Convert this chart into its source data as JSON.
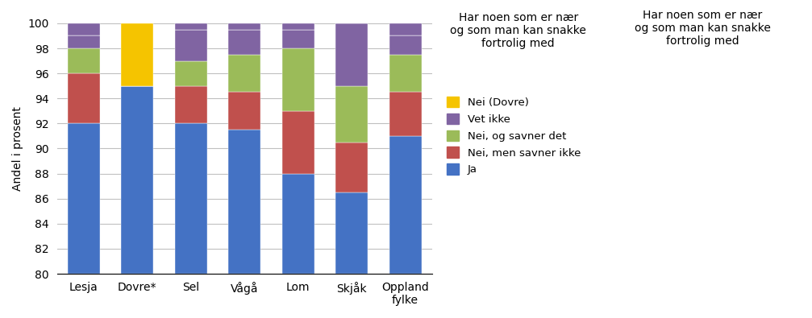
{
  "categories": [
    "Lesja",
    "Dovre*",
    "Sel",
    "Vågå",
    "Lom",
    "Skjåk",
    "Oppland\nfylke"
  ],
  "base": 80,
  "series": [
    {
      "label": "Ja",
      "color": "#4472C4",
      "tops": [
        92,
        95,
        92,
        91.5,
        88,
        86.5,
        91
      ]
    },
    {
      "label": "Nei, men savner ikke",
      "color": "#C0504D",
      "tops": [
        96,
        95,
        95,
        94.5,
        93,
        90.5,
        94.5
      ]
    },
    {
      "label": "Nei, og savner det",
      "color": "#9BBB59",
      "tops": [
        98,
        95,
        97,
        97.5,
        98,
        95,
        97.5
      ]
    },
    {
      "label": "Vet ikke",
      "color": "#8064A2",
      "tops": [
        99,
        95,
        99.5,
        99.5,
        99.5,
        100,
        99
      ]
    },
    {
      "label": "Nei (Dovre)",
      "color": "#F5C400",
      "tops": [
        99,
        100,
        99.5,
        99.5,
        99.5,
        100,
        99
      ]
    }
  ],
  "total": 100,
  "ylabel": "Andel i prosent",
  "ylim": [
    80,
    100
  ],
  "yticks": [
    80,
    82,
    84,
    86,
    88,
    90,
    92,
    94,
    96,
    98,
    100
  ],
  "title": "Har noen som er nær\nog som man kan snakke\nfortrolig med",
  "background_color": "#FFFFFF",
  "plot_background_color": "#FFFFFF",
  "grid_color": "#C0C0C0",
  "bar_width": 0.6,
  "figsize": [
    10.07,
    3.95
  ],
  "dpi": 100
}
